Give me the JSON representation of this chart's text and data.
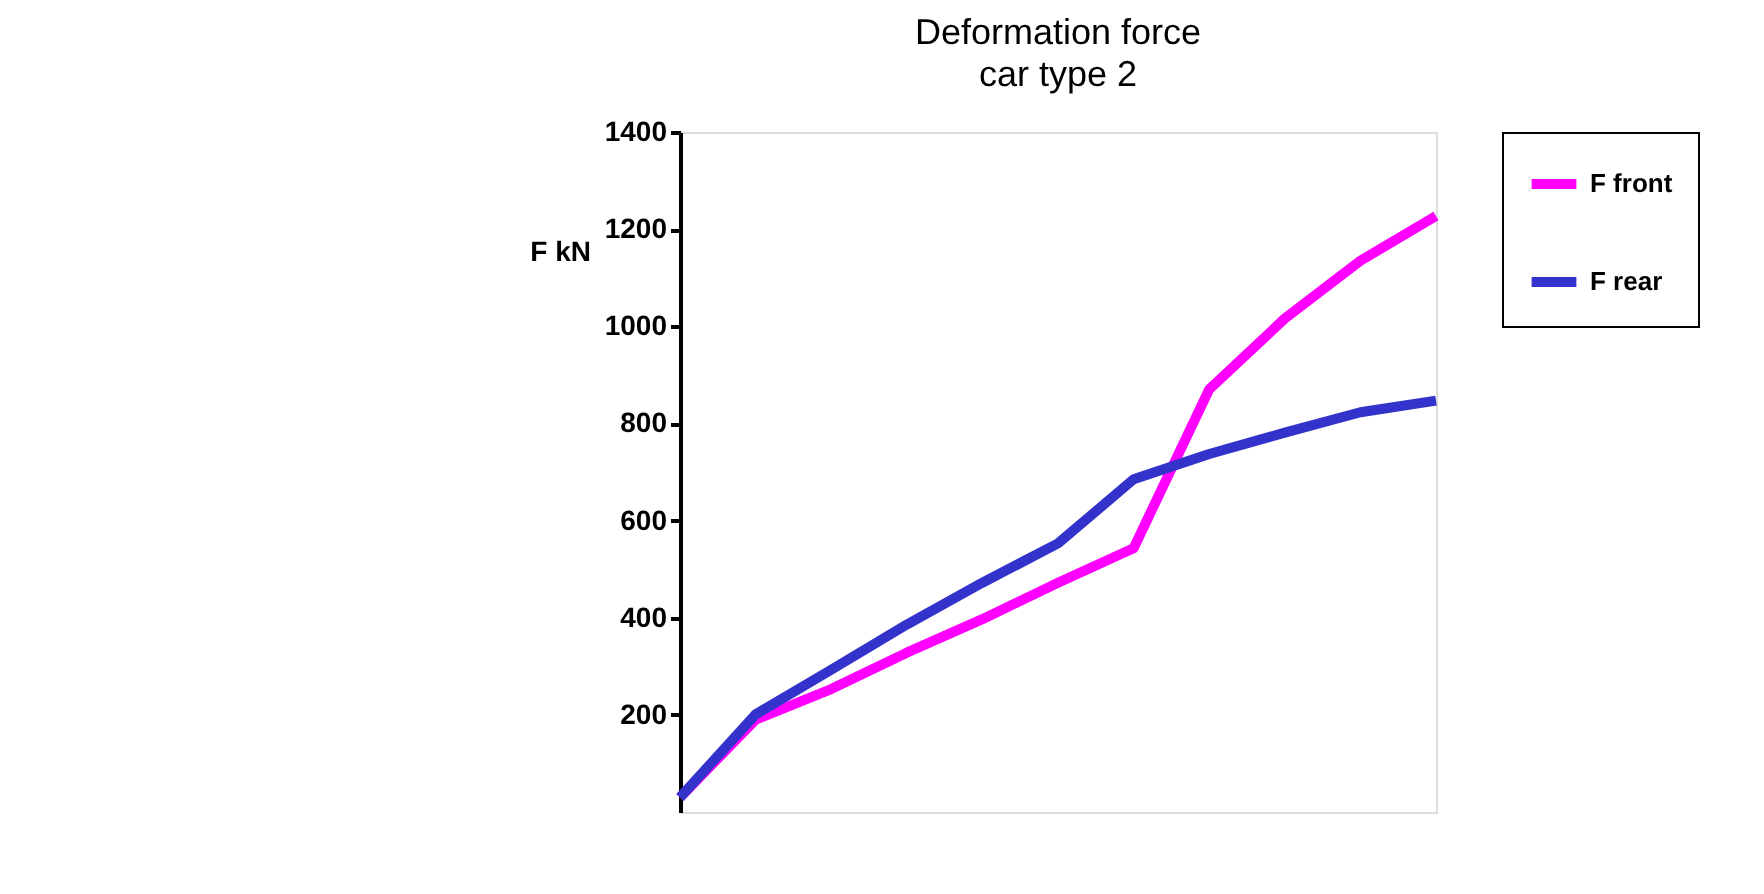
{
  "chart_data": {
    "type": "line",
    "title": "Deformation force",
    "subtitle": "car type 2",
    "ylabel": "F  kN",
    "categories": [
      null,
      null,
      null,
      null,
      null,
      null,
      null,
      null,
      null,
      null,
      null
    ],
    "series": [
      {
        "name": "F front",
        "color": "#ff00ff",
        "values": [
          30,
          190,
          253,
          328,
          397,
          472,
          543,
          870,
          1016,
          1135,
          1227
        ]
      },
      {
        "name": "F rear",
        "color": "#3333cc",
        "values": [
          30,
          201,
          293,
          386,
          472,
          553,
          685,
          737,
          781,
          823,
          847
        ]
      }
    ],
    "ylim": [
      0,
      1400
    ],
    "yticks": [
      200,
      400,
      600,
      800,
      1000,
      1200,
      1400
    ],
    "tick_labels": "y",
    "grid": false,
    "legend": "right",
    "marker": "none",
    "line_style": "solid"
  }
}
